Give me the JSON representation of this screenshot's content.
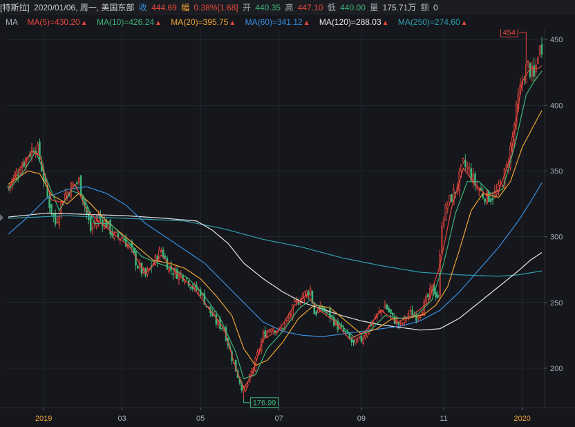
{
  "info": {
    "name": "[特斯拉]",
    "date": "2020/01/06, 周一, 美国东部",
    "close_label": "收",
    "close": "444.69",
    "change_label": "幅",
    "change_pct": "0.38%",
    "change_abs": "[1.68]",
    "open_label": "开",
    "open": "440.35",
    "high_label": "高",
    "high": "447.10",
    "low_label": "低",
    "low": "440.00",
    "volume_label": "量",
    "volume": "175.71万",
    "amount_label": "额",
    "amount": "0"
  },
  "ma_legend": {
    "title": "MA",
    "items": [
      {
        "label": "MA(5)=430.20",
        "color": "#e8473d"
      },
      {
        "label": "MA(10)=426.24",
        "color": "#3fb37a"
      },
      {
        "label": "MA(20)=395.75",
        "color": "#f0a434"
      },
      {
        "label": "MA(60)=341.12",
        "color": "#3a8fe0"
      },
      {
        "label": "MA(120)=288.03",
        "color": "#e6e6e6"
      },
      {
        "label": "MA(250)=274.60",
        "color": "#2f9fb0"
      }
    ],
    "arrow_color": "#e8473d"
  },
  "chart_data": {
    "type": "candlestick",
    "ylim": [
      170,
      458
    ],
    "y_ticks": [
      200,
      250,
      300,
      350,
      400,
      450
    ],
    "x_ticks": [
      {
        "label": "2019",
        "index": 18,
        "highlight": true
      },
      {
        "label": "03",
        "index": 58
      },
      {
        "label": "05",
        "index": 98
      },
      {
        "label": "07",
        "index": 138
      },
      {
        "label": "09",
        "index": 180
      },
      {
        "label": "11",
        "index": 222
      },
      {
        "label": "2020",
        "index": 262,
        "highlight": true
      }
    ],
    "max_annotation": {
      "label": "454",
      "value": 454,
      "index": 264
    },
    "min_annotation": {
      "label": "176.99",
      "value": 176.99,
      "index": 120
    },
    "up_color": "#e8473d",
    "down_color": "#3fb37a",
    "close_anchors": [
      [
        0,
        338
      ],
      [
        5,
        350
      ],
      [
        10,
        362
      ],
      [
        14,
        370
      ],
      [
        16,
        360
      ],
      [
        20,
        330
      ],
      [
        24,
        310
      ],
      [
        28,
        330
      ],
      [
        32,
        338
      ],
      [
        36,
        342
      ],
      [
        38,
        330
      ],
      [
        42,
        305
      ],
      [
        46,
        315
      ],
      [
        50,
        310
      ],
      [
        54,
        300
      ],
      [
        58,
        300
      ],
      [
        62,
        292
      ],
      [
        66,
        278
      ],
      [
        70,
        270
      ],
      [
        74,
        280
      ],
      [
        78,
        290
      ],
      [
        82,
        276
      ],
      [
        86,
        272
      ],
      [
        90,
        270
      ],
      [
        94,
        262
      ],
      [
        98,
        258
      ],
      [
        102,
        245
      ],
      [
        106,
        235
      ],
      [
        110,
        230
      ],
      [
        114,
        208
      ],
      [
        118,
        190
      ],
      [
        120,
        182
      ],
      [
        122,
        188
      ],
      [
        126,
        205
      ],
      [
        130,
        225
      ],
      [
        134,
        232
      ],
      [
        138,
        228
      ],
      [
        142,
        235
      ],
      [
        146,
        248
      ],
      [
        150,
        255
      ],
      [
        154,
        260
      ],
      [
        156,
        242
      ],
      [
        160,
        245
      ],
      [
        164,
        240
      ],
      [
        168,
        232
      ],
      [
        172,
        226
      ],
      [
        176,
        218
      ],
      [
        180,
        222
      ],
      [
        184,
        232
      ],
      [
        188,
        240
      ],
      [
        192,
        248
      ],
      [
        196,
        238
      ],
      [
        200,
        232
      ],
      [
        204,
        242
      ],
      [
        208,
        240
      ],
      [
        212,
        248
      ],
      [
        216,
        260
      ],
      [
        219,
        255
      ],
      [
        221,
        312
      ],
      [
        224,
        325
      ],
      [
        228,
        335
      ],
      [
        232,
        355
      ],
      [
        235,
        350
      ],
      [
        238,
        340
      ],
      [
        242,
        332
      ],
      [
        246,
        330
      ],
      [
        250,
        335
      ],
      [
        254,
        352
      ],
      [
        257,
        375
      ],
      [
        260,
        405
      ],
      [
        263,
        425
      ],
      [
        265,
        430
      ],
      [
        268,
        420
      ],
      [
        270,
        440
      ],
      [
        272,
        445
      ]
    ],
    "ma_series": [
      {
        "name": "MA(250)",
        "color": "#2f9fb0",
        "points": [
          [
            0,
            314
          ],
          [
            30,
            316
          ],
          [
            60,
            314
          ],
          [
            90,
            312
          ],
          [
            110,
            306
          ],
          [
            130,
            298
          ],
          [
            150,
            292
          ],
          [
            170,
            284
          ],
          [
            190,
            278
          ],
          [
            210,
            273
          ],
          [
            230,
            271
          ],
          [
            250,
            270
          ],
          [
            260,
            271
          ],
          [
            272,
            274
          ]
        ]
      },
      {
        "name": "MA(120)",
        "color": "#e6e6e6",
        "points": [
          [
            0,
            315
          ],
          [
            20,
            318
          ],
          [
            40,
            317
          ],
          [
            60,
            316
          ],
          [
            80,
            314
          ],
          [
            96,
            312
          ],
          [
            104,
            305
          ],
          [
            112,
            295
          ],
          [
            120,
            280
          ],
          [
            130,
            268
          ],
          [
            140,
            258
          ],
          [
            150,
            250
          ],
          [
            160,
            245
          ],
          [
            170,
            240
          ],
          [
            180,
            236
          ],
          [
            190,
            233
          ],
          [
            200,
            231
          ],
          [
            210,
            229
          ],
          [
            220,
            230
          ],
          [
            230,
            238
          ],
          [
            240,
            250
          ],
          [
            250,
            262
          ],
          [
            260,
            274
          ],
          [
            266,
            282
          ],
          [
            272,
            288
          ]
        ]
      },
      {
        "name": "MA(60)",
        "color": "#3a8fe0",
        "points": [
          [
            0,
            302
          ],
          [
            10,
            315
          ],
          [
            20,
            330
          ],
          [
            30,
            336
          ],
          [
            40,
            338
          ],
          [
            50,
            333
          ],
          [
            60,
            324
          ],
          [
            70,
            310
          ],
          [
            80,
            300
          ],
          [
            90,
            290
          ],
          [
            100,
            280
          ],
          [
            110,
            265
          ],
          [
            120,
            250
          ],
          [
            130,
            235
          ],
          [
            140,
            228
          ],
          [
            150,
            225
          ],
          [
            160,
            224
          ],
          [
            170,
            226
          ],
          [
            180,
            228
          ],
          [
            190,
            230
          ],
          [
            200,
            232
          ],
          [
            210,
            236
          ],
          [
            220,
            244
          ],
          [
            230,
            258
          ],
          [
            240,
            275
          ],
          [
            250,
            292
          ],
          [
            260,
            312
          ],
          [
            266,
            326
          ],
          [
            272,
            341
          ]
        ]
      },
      {
        "name": "MA(20)",
        "color": "#f0a434",
        "points": [
          [
            0,
            340
          ],
          [
            10,
            350
          ],
          [
            16,
            348
          ],
          [
            22,
            332
          ],
          [
            30,
            325
          ],
          [
            36,
            333
          ],
          [
            42,
            325
          ],
          [
            50,
            312
          ],
          [
            58,
            302
          ],
          [
            66,
            292
          ],
          [
            74,
            282
          ],
          [
            82,
            280
          ],
          [
            90,
            276
          ],
          [
            98,
            268
          ],
          [
            106,
            255
          ],
          [
            114,
            240
          ],
          [
            120,
            215
          ],
          [
            126,
            202
          ],
          [
            132,
            206
          ],
          [
            140,
            220
          ],
          [
            148,
            238
          ],
          [
            156,
            248
          ],
          [
            164,
            246
          ],
          [
            172,
            236
          ],
          [
            180,
            226
          ],
          [
            188,
            230
          ],
          [
            196,
            238
          ],
          [
            204,
            238
          ],
          [
            212,
            241
          ],
          [
            218,
            248
          ],
          [
            224,
            262
          ],
          [
            230,
            290
          ],
          [
            236,
            320
          ],
          [
            242,
            333
          ],
          [
            250,
            330
          ],
          [
            256,
            342
          ],
          [
            262,
            368
          ],
          [
            268,
            385
          ],
          [
            272,
            396
          ]
        ]
      },
      {
        "name": "MA(10)",
        "color": "#3fb37a",
        "points": [
          [
            0,
            335
          ],
          [
            8,
            350
          ],
          [
            14,
            365
          ],
          [
            20,
            342
          ],
          [
            26,
            320
          ],
          [
            32,
            335
          ],
          [
            38,
            332
          ],
          [
            44,
            310
          ],
          [
            52,
            310
          ],
          [
            60,
            298
          ],
          [
            68,
            285
          ],
          [
            76,
            280
          ],
          [
            84,
            276
          ],
          [
            92,
            268
          ],
          [
            100,
            255
          ],
          [
            108,
            238
          ],
          [
            116,
            212
          ],
          [
            120,
            192
          ],
          [
            126,
            195
          ],
          [
            132,
            215
          ],
          [
            140,
            228
          ],
          [
            148,
            245
          ],
          [
            154,
            252
          ],
          [
            160,
            245
          ],
          [
            168,
            235
          ],
          [
            176,
            224
          ],
          [
            184,
            228
          ],
          [
            192,
            240
          ],
          [
            200,
            238
          ],
          [
            208,
            240
          ],
          [
            216,
            252
          ],
          [
            222,
            280
          ],
          [
            228,
            318
          ],
          [
            234,
            342
          ],
          [
            240,
            342
          ],
          [
            246,
            333
          ],
          [
            252,
            336
          ],
          [
            258,
            368
          ],
          [
            264,
            408
          ],
          [
            268,
            418
          ],
          [
            272,
            426
          ]
        ]
      },
      {
        "name": "MA(5)",
        "color": "#e8473d",
        "points": [
          [
            0,
            336
          ],
          [
            6,
            352
          ],
          [
            12,
            365
          ],
          [
            16,
            362
          ],
          [
            22,
            328
          ],
          [
            28,
            326
          ],
          [
            34,
            340
          ],
          [
            40,
            320
          ],
          [
            46,
            312
          ],
          [
            54,
            302
          ],
          [
            62,
            292
          ],
          [
            70,
            272
          ],
          [
            78,
            286
          ],
          [
            86,
            272
          ],
          [
            94,
            262
          ],
          [
            102,
            246
          ],
          [
            110,
            230
          ],
          [
            116,
            200
          ],
          [
            120,
            185
          ],
          [
            124,
            194
          ],
          [
            130,
            222
          ],
          [
            138,
            229
          ],
          [
            146,
            248
          ],
          [
            152,
            256
          ],
          [
            158,
            245
          ],
          [
            166,
            236
          ],
          [
            174,
            222
          ],
          [
            182,
            228
          ],
          [
            190,
            244
          ],
          [
            198,
            235
          ],
          [
            206,
            240
          ],
          [
            214,
            250
          ],
          [
            220,
            278
          ],
          [
            226,
            322
          ],
          [
            232,
            352
          ],
          [
            238,
            340
          ],
          [
            244,
            331
          ],
          [
            250,
            335
          ],
          [
            256,
            360
          ],
          [
            262,
            418
          ],
          [
            266,
            428
          ],
          [
            270,
            428
          ],
          [
            272,
            430
          ]
        ]
      }
    ]
  }
}
